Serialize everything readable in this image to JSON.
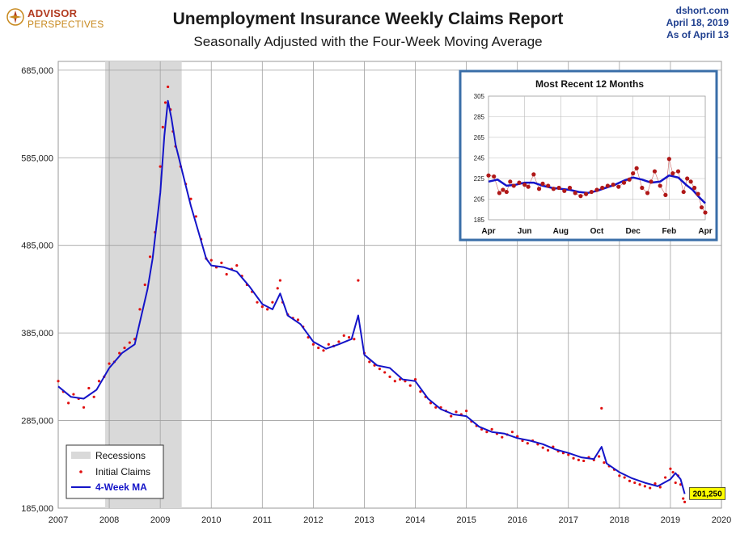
{
  "logo": {
    "line1": "ADVISOR",
    "line2": "PERSPECTIVES"
  },
  "header": {
    "title": "Unemployment Insurance Weekly Claims Report",
    "subtitle": "Seasonally Adjusted with the Four-Week Moving Average"
  },
  "source": {
    "site": "dshort.com",
    "date": "April 18, 2019",
    "asof": "As of April 13"
  },
  "colors": {
    "ma": "#1414c8",
    "claims": "#e01010",
    "recession": "#d9d9d9",
    "inset_border": "#3a6ea8",
    "inset_dot": "#b01818",
    "highlight": "#ffff00"
  },
  "chart_data": [
    {
      "type": "line",
      "ylim": [
        185000,
        695000
      ],
      "xlim": [
        2007,
        2020
      ],
      "yticks": [
        185000,
        285000,
        385000,
        485000,
        585000,
        685000
      ],
      "ytick_labels": [
        "185,000",
        "285,000",
        "385,000",
        "485,000",
        "585,000",
        "685,000"
      ],
      "xticks": [
        2007,
        2008,
        2009,
        2010,
        2011,
        2012,
        2013,
        2014,
        2015,
        2016,
        2017,
        2018,
        2019,
        2020
      ],
      "xtick_labels": [
        "2007",
        "2008",
        "2009",
        "2010",
        "2011",
        "2012",
        "2013",
        "2014",
        "2015",
        "2016",
        "2017",
        "2018",
        "2019",
        "2020"
      ],
      "grid": true,
      "recession": {
        "label": "Recessions",
        "start": 2007.92,
        "end": 2009.42
      },
      "legend": {
        "position": "bottom-left",
        "entries": [
          "Recessions",
          "Initial Claims",
          "4-Week MA"
        ]
      },
      "latest_label": "201,250",
      "latest_value": 201250,
      "series": [
        {
          "name": "4-Week MA",
          "x": [
            2007.0,
            2007.25,
            2007.5,
            2007.75,
            2008.0,
            2008.25,
            2008.5,
            2008.75,
            2008.85,
            2009.0,
            2009.08,
            2009.15,
            2009.22,
            2009.3,
            2009.45,
            2009.6,
            2009.75,
            2009.9,
            2010.0,
            2010.25,
            2010.5,
            2010.75,
            2011.0,
            2011.2,
            2011.35,
            2011.5,
            2011.75,
            2012.0,
            2012.25,
            2012.5,
            2012.75,
            2012.88,
            2013.0,
            2013.25,
            2013.5,
            2013.75,
            2014.0,
            2014.25,
            2014.5,
            2014.75,
            2015.0,
            2015.25,
            2015.5,
            2015.75,
            2016.0,
            2016.25,
            2016.5,
            2016.75,
            2017.0,
            2017.25,
            2017.5,
            2017.65,
            2017.75,
            2018.0,
            2018.25,
            2018.5,
            2018.75,
            2019.0,
            2019.1,
            2019.2,
            2019.28
          ],
          "values": [
            324000,
            312000,
            310000,
            320000,
            345000,
            362000,
            372000,
            435000,
            470000,
            545000,
            610000,
            650000,
            630000,
            600000,
            565000,
            530000,
            500000,
            470000,
            462000,
            460000,
            455000,
            438000,
            418000,
            412000,
            430000,
            405000,
            395000,
            375000,
            367000,
            372000,
            378000,
            405000,
            360000,
            348000,
            345000,
            332000,
            330000,
            310000,
            298000,
            292000,
            290000,
            278000,
            272000,
            270000,
            265000,
            262000,
            258000,
            252000,
            248000,
            243000,
            241000,
            255000,
            236000,
            226000,
            219000,
            214000,
            210000,
            218000,
            225000,
            218000,
            201250
          ]
        },
        {
          "name": "Initial Claims",
          "x": [
            2007.0,
            2007.1,
            2007.2,
            2007.3,
            2007.4,
            2007.5,
            2007.6,
            2007.7,
            2007.8,
            2007.9,
            2008.0,
            2008.1,
            2008.2,
            2008.3,
            2008.4,
            2008.5,
            2008.6,
            2008.7,
            2008.8,
            2008.9,
            2009.0,
            2009.05,
            2009.1,
            2009.15,
            2009.2,
            2009.25,
            2009.3,
            2009.4,
            2009.5,
            2009.6,
            2009.7,
            2009.8,
            2009.9,
            2010.0,
            2010.1,
            2010.2,
            2010.3,
            2010.4,
            2010.5,
            2010.6,
            2010.7,
            2010.8,
            2010.9,
            2011.0,
            2011.1,
            2011.2,
            2011.3,
            2011.35,
            2011.4,
            2011.5,
            2011.6,
            2011.7,
            2011.8,
            2011.9,
            2012.0,
            2012.1,
            2012.2,
            2012.3,
            2012.4,
            2012.5,
            2012.6,
            2012.7,
            2012.8,
            2012.88,
            2013.0,
            2013.1,
            2013.2,
            2013.3,
            2013.4,
            2013.5,
            2013.6,
            2013.7,
            2013.8,
            2013.9,
            2014.0,
            2014.1,
            2014.2,
            2014.3,
            2014.4,
            2014.5,
            2014.6,
            2014.7,
            2014.8,
            2014.9,
            2015.0,
            2015.1,
            2015.2,
            2015.3,
            2015.4,
            2015.5,
            2015.6,
            2015.7,
            2015.8,
            2015.9,
            2016.0,
            2016.1,
            2016.2,
            2016.3,
            2016.4,
            2016.5,
            2016.6,
            2016.7,
            2016.8,
            2016.9,
            2017.0,
            2017.1,
            2017.2,
            2017.3,
            2017.4,
            2017.5,
            2017.6,
            2017.65,
            2017.7,
            2017.8,
            2017.9,
            2018.0,
            2018.1,
            2018.2,
            2018.3,
            2018.4,
            2018.5,
            2018.6,
            2018.7,
            2018.8,
            2018.9,
            2019.0,
            2019.05,
            2019.1,
            2019.15,
            2019.2,
            2019.25,
            2019.28
          ],
          "values": [
            330000,
            318000,
            305000,
            315000,
            310000,
            300000,
            322000,
            312000,
            330000,
            335000,
            350000,
            352000,
            362000,
            368000,
            374000,
            378000,
            412000,
            440000,
            472000,
            500000,
            575000,
            620000,
            648000,
            666000,
            640000,
            615000,
            598000,
            575000,
            555000,
            538000,
            518000,
            492000,
            470000,
            468000,
            460000,
            465000,
            452000,
            458000,
            462000,
            450000,
            440000,
            432000,
            420000,
            415000,
            412000,
            420000,
            436000,
            445000,
            420000,
            406000,
            402000,
            400000,
            392000,
            380000,
            372000,
            368000,
            365000,
            372000,
            370000,
            375000,
            382000,
            380000,
            378000,
            445000,
            362000,
            352000,
            348000,
            344000,
            340000,
            335000,
            330000,
            332000,
            330000,
            325000,
            332000,
            318000,
            312000,
            305000,
            300000,
            300000,
            296000,
            290000,
            295000,
            292000,
            296000,
            284000,
            279000,
            275000,
            272000,
            275000,
            270000,
            266000,
            269000,
            272000,
            267000,
            262000,
            259000,
            262000,
            258000,
            254000,
            251000,
            255000,
            250000,
            248000,
            246000,
            242000,
            240000,
            239000,
            243000,
            240000,
            244000,
            299000,
            237000,
            233000,
            229000,
            222000,
            220000,
            216000,
            214000,
            212000,
            210000,
            208000,
            213000,
            209000,
            220000,
            230000,
            226000,
            214000,
            222000,
            212000,
            196000,
            192000
          ]
        }
      ]
    },
    {
      "type": "line",
      "title": "Most Recent 12 Months",
      "ylim": [
        185,
        305
      ],
      "yticks": [
        185,
        205,
        225,
        245,
        265,
        285,
        305
      ],
      "ytick_labels": [
        "185",
        "205",
        "225",
        "245",
        "265",
        "285",
        "305"
      ],
      "xticks": [
        0,
        2,
        4,
        6,
        8,
        10,
        12
      ],
      "xtick_labels": [
        "Apr",
        "Jun",
        "Aug",
        "Oct",
        "Dec",
        "Feb",
        "Apr"
      ],
      "grid": true,
      "series": [
        {
          "name": "4-Week MA",
          "x": [
            0,
            0.5,
            1,
            1.5,
            2,
            2.5,
            3,
            3.5,
            4,
            4.5,
            5,
            5.5,
            6,
            6.5,
            7,
            7.5,
            8,
            8.5,
            9,
            9.5,
            10,
            10.5,
            11,
            11.3,
            11.6,
            12
          ],
          "values": [
            222,
            224,
            218,
            219,
            221,
            221,
            218,
            216,
            215,
            214,
            212,
            211,
            213,
            216,
            219,
            223,
            226,
            224,
            221,
            222,
            228,
            226,
            218,
            214,
            208,
            201
          ]
        },
        {
          "name": "Initial Claims",
          "x": [
            0,
            0.3,
            0.6,
            0.8,
            1,
            1.2,
            1.4,
            1.7,
            2,
            2.2,
            2.5,
            2.8,
            3,
            3.3,
            3.6,
            3.9,
            4.2,
            4.5,
            4.8,
            5.1,
            5.4,
            5.7,
            6,
            6.3,
            6.6,
            6.9,
            7.2,
            7.5,
            7.8,
            8,
            8.2,
            8.5,
            8.8,
            9,
            9.2,
            9.5,
            9.8,
            10,
            10.2,
            10.5,
            10.8,
            11,
            11.2,
            11.4,
            11.6,
            11.8,
            12
          ],
          "values": [
            228,
            227,
            211,
            214,
            212,
            222,
            218,
            221,
            219,
            217,
            229,
            215,
            220,
            218,
            215,
            216,
            213,
            216,
            211,
            208,
            210,
            212,
            214,
            216,
            218,
            219,
            217,
            221,
            224,
            230,
            235,
            216,
            211,
            222,
            232,
            218,
            209,
            244,
            230,
            232,
            212,
            225,
            222,
            216,
            210,
            197,
            192
          ]
        }
      ]
    }
  ]
}
